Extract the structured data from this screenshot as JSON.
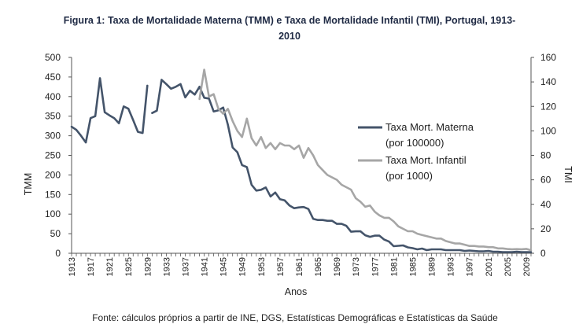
{
  "chart_data": {
    "type": "line",
    "title_line1": "Figura 1: Taxa de Mortalidade Materna (TMM) e Taxa de Mortalidade Infantil (TMI), Portugal, 1913-",
    "title_line2": "2010",
    "xlabel": "Anos",
    "ylabel_left": "TMM",
    "ylabel_right": "TMI",
    "source": "Fonte: cálculos próprios a partir de INE, DGS, Estatísticas Demográficas e Estatísticas da Saúde",
    "xlim": [
      1913,
      2010
    ],
    "ylim_left": [
      0,
      500
    ],
    "ylim_right": [
      0,
      160
    ],
    "yticks_left": [
      0,
      50,
      100,
      150,
      200,
      250,
      300,
      350,
      400,
      450,
      500
    ],
    "yticks_right": [
      0,
      20,
      40,
      60,
      80,
      100,
      120,
      140,
      160
    ],
    "xticks": [
      1913,
      1917,
      1921,
      1925,
      1929,
      1933,
      1937,
      1941,
      1945,
      1949,
      1953,
      1957,
      1961,
      1965,
      1969,
      1973,
      1977,
      1981,
      1985,
      1989,
      1993,
      1997,
      2001,
      2005,
      2009
    ],
    "series": [
      {
        "name": "Taxa Mort. Materna",
        "name_line2": "(por 100000)",
        "axis": "left",
        "color": "#44546a",
        "segments": [
          [
            [
              1913,
              323
            ],
            [
              1914,
              315
            ],
            [
              1915,
              300
            ],
            [
              1916,
              283
            ],
            [
              1917,
              345
            ],
            [
              1918,
              350
            ],
            [
              1919,
              447
            ],
            [
              1920,
              360
            ],
            [
              1921,
              352
            ],
            [
              1922,
              345
            ],
            [
              1923,
              332
            ],
            [
              1924,
              375
            ],
            [
              1925,
              369
            ],
            [
              1926,
              340
            ],
            [
              1927,
              310
            ],
            [
              1928,
              307
            ],
            [
              1929,
              428
            ]
          ],
          [
            [
              1930,
              358
            ],
            [
              1931,
              364
            ],
            [
              1932,
              443
            ],
            [
              1933,
              432
            ],
            [
              1934,
              420
            ],
            [
              1935,
              425
            ],
            [
              1936,
              432
            ],
            [
              1937,
              398
            ],
            [
              1938,
              415
            ],
            [
              1939,
              405
            ],
            [
              1940,
              425
            ],
            [
              1941,
              397
            ],
            [
              1942,
              395
            ],
            [
              1943,
              362
            ],
            [
              1944,
              365
            ],
            [
              1945,
              372
            ],
            [
              1946,
              328
            ],
            [
              1947,
              270
            ],
            [
              1948,
              258
            ],
            [
              1949,
              225
            ],
            [
              1950,
              220
            ],
            [
              1951,
              175
            ],
            [
              1952,
              160
            ],
            [
              1953,
              162
            ],
            [
              1954,
              168
            ],
            [
              1955,
              145
            ],
            [
              1956,
              155
            ],
            [
              1957,
              138
            ],
            [
              1958,
              135
            ],
            [
              1959,
              122
            ],
            [
              1960,
              115
            ],
            [
              1961,
              117
            ],
            [
              1962,
              118
            ],
            [
              1963,
              113
            ],
            [
              1964,
              88
            ],
            [
              1965,
              85
            ],
            [
              1966,
              85
            ],
            [
              1967,
              83
            ],
            [
              1968,
              83
            ],
            [
              1969,
              75
            ],
            [
              1970,
              75
            ],
            [
              1971,
              70
            ],
            [
              1972,
              55
            ],
            [
              1973,
              56
            ],
            [
              1974,
              56
            ],
            [
              1975,
              46
            ],
            [
              1976,
              42
            ],
            [
              1977,
              45
            ],
            [
              1978,
              45
            ],
            [
              1979,
              35
            ],
            [
              1980,
              30
            ],
            [
              1981,
              18
            ],
            [
              1982,
              19
            ],
            [
              1983,
              20
            ],
            [
              1984,
              15
            ],
            [
              1985,
              13
            ],
            [
              1986,
              10
            ],
            [
              1987,
              12
            ],
            [
              1988,
              8
            ],
            [
              1989,
              10
            ],
            [
              1990,
              10
            ],
            [
              1991,
              10
            ],
            [
              1992,
              8
            ],
            [
              1993,
              8
            ],
            [
              1994,
              8
            ],
            [
              1995,
              8
            ],
            [
              1996,
              6
            ],
            [
              1997,
              7
            ],
            [
              1998,
              6
            ],
            [
              1999,
              5
            ],
            [
              2000,
              5
            ],
            [
              2001,
              6
            ],
            [
              2002,
              4
            ],
            [
              2003,
              4
            ],
            [
              2004,
              3
            ],
            [
              2005,
              3
            ],
            [
              2006,
              3
            ],
            [
              2007,
              4
            ],
            [
              2008,
              3
            ],
            [
              2009,
              3
            ],
            [
              2010,
              3
            ]
          ]
        ]
      },
      {
        "name": "Taxa Mort. Infantil",
        "name_line2": "(por 1000)",
        "axis": "right",
        "color": "#a6a6a6",
        "segments": [
          [
            [
              1940,
              126
            ],
            [
              1941,
              150
            ],
            [
              1942,
              128
            ],
            [
              1943,
              130
            ],
            [
              1944,
              118
            ],
            [
              1945,
              114
            ],
            [
              1946,
              118
            ],
            [
              1947,
              108
            ],
            [
              1948,
              100
            ],
            [
              1949,
              95
            ],
            [
              1950,
              110
            ],
            [
              1951,
              94
            ],
            [
              1952,
              88
            ],
            [
              1953,
              95
            ],
            [
              1954,
              86
            ],
            [
              1955,
              90
            ],
            [
              1956,
              85
            ],
            [
              1957,
              90
            ],
            [
              1958,
              88
            ],
            [
              1959,
              88
            ],
            [
              1960,
              85
            ],
            [
              1961,
              88
            ],
            [
              1962,
              78
            ],
            [
              1963,
              86
            ],
            [
              1964,
              80
            ],
            [
              1965,
              72
            ],
            [
              1966,
              68
            ],
            [
              1967,
              64
            ],
            [
              1968,
              62
            ],
            [
              1969,
              60
            ],
            [
              1970,
              56
            ],
            [
              1971,
              54
            ],
            [
              1972,
              52
            ],
            [
              1973,
              45
            ],
            [
              1974,
              42
            ],
            [
              1975,
              38
            ],
            [
              1976,
              39
            ],
            [
              1977,
              34
            ],
            [
              1978,
              31
            ],
            [
              1979,
              29
            ],
            [
              1980,
              29
            ],
            [
              1981,
              26
            ],
            [
              1982,
              22
            ],
            [
              1983,
              20
            ],
            [
              1984,
              18
            ],
            [
              1985,
              18
            ],
            [
              1986,
              16
            ],
            [
              1987,
              15
            ],
            [
              1988,
              14
            ],
            [
              1989,
              13
            ],
            [
              1990,
              12
            ],
            [
              1991,
              12
            ],
            [
              1992,
              10
            ],
            [
              1993,
              9
            ],
            [
              1994,
              8
            ],
            [
              1995,
              8
            ],
            [
              1996,
              7
            ],
            [
              1997,
              6
            ],
            [
              1998,
              6
            ],
            [
              1999,
              5.5
            ],
            [
              2000,
              5.5
            ],
            [
              2001,
              5
            ],
            [
              2002,
              5
            ],
            [
              2003,
              4
            ],
            [
              2004,
              4
            ],
            [
              2005,
              3.5
            ],
            [
              2006,
              3.3
            ],
            [
              2007,
              3.4
            ],
            [
              2008,
              3.3
            ],
            [
              2009,
              3.6
            ],
            [
              2010,
              2.5
            ]
          ]
        ]
      }
    ]
  }
}
